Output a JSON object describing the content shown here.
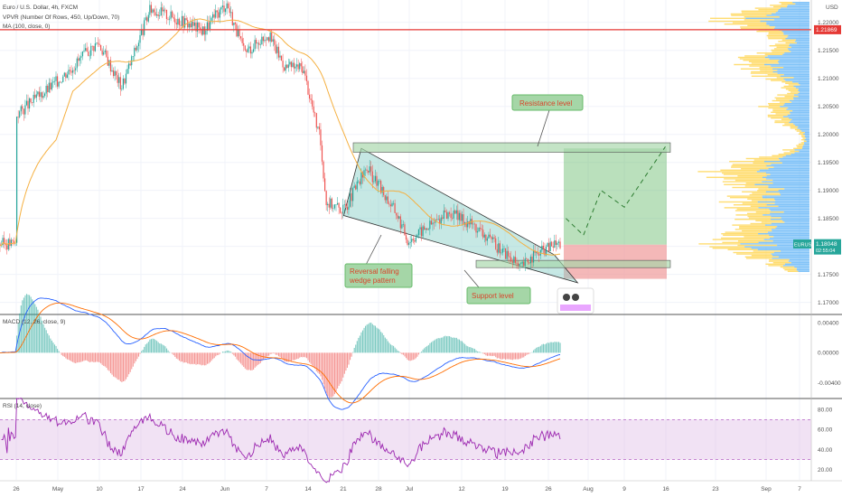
{
  "header": {
    "symbol_title": "Euro / U.S. Dollar, 4h, FXCM",
    "indicator_vpvr": "VPVR (Number Of Rows, 450, Up/Down, 70)",
    "indicator_ma": "MA (100, close, 0)"
  },
  "price_axis": {
    "currency": "USD",
    "ticks": [
      "1.22000",
      "1.21500",
      "1.21000",
      "1.20500",
      "1.20000",
      "1.19500",
      "1.19000",
      "1.18500",
      "1.18000",
      "1.17500",
      "1.17000"
    ],
    "tick_values": [
      1.22,
      1.215,
      1.21,
      1.205,
      1.2,
      1.195,
      1.19,
      1.185,
      1.18,
      1.175,
      1.17
    ],
    "red_level_label": "1.21869",
    "red_level_value": 1.21869,
    "current_symbol": "EURUSD",
    "current_price": "1.18048",
    "current_price_value": 1.18048,
    "countdown": "02:55:04"
  },
  "time_axis": {
    "labels": [
      "26",
      "May",
      "10",
      "17",
      "24",
      "Jun",
      "7",
      "14",
      "21",
      "28",
      "Jul",
      "12",
      "19",
      "26",
      "Aug",
      "9",
      "16",
      "23",
      "Sep",
      "7"
    ]
  },
  "annotations": {
    "resistance": "Resistance level",
    "wedge_line1": "Reversal falling",
    "wedge_line2": "wedge pattern",
    "support": "Support level"
  },
  "macd": {
    "title": "MACD (12, 26, close, 9)",
    "ticks": [
      "0.00400",
      "0.00000",
      "-0.00400"
    ],
    "tick_values": [
      0.004,
      0,
      -0.004
    ]
  },
  "rsi": {
    "title": "RSI (14, close)",
    "ticks": [
      "80.00",
      "60.00",
      "40.00",
      "20.00"
    ],
    "tick_values": [
      80,
      60,
      40,
      20
    ]
  },
  "colors": {
    "up": "#26a69a",
    "down": "#ef5350",
    "ma": "#f5b041",
    "red_level": "#e53935",
    "resistance_zone": "#a5d6a7",
    "wedge": "#80cbc4",
    "target": "#66bb6a",
    "stop": "#ef9a9a",
    "macd_line": "#2962ff",
    "signal_line": "#ff6d00",
    "rsi_line": "#9c27b0",
    "rsi_band": "#e1bee7"
  },
  "chart_data": [
    {
      "type": "candlestick",
      "title": "Euro / U.S. Dollar, 4h, FXCM",
      "ylim": [
        1.168,
        1.224
      ],
      "overlays": {
        "resistance_zone": [
          1.1968,
          1.1985
        ],
        "support_zone": [
          1.1762,
          1.1775
        ],
        "red_horizontal_level": 1.21869,
        "long_position": {
          "entry": 1.1803,
          "target": 1.1975,
          "stop": 1.1742
        },
        "falling_wedge_upper": [
          [
            "Jun 24",
            1.1975
          ],
          [
            "Jul 27",
            1.1785
          ]
        ],
        "falling_wedge_lower": [
          [
            "Jun 21",
            1.1855
          ],
          [
            "Jul 31",
            1.1735
          ]
        ]
      },
      "price_path_approx": [
        [
          "Apr 26",
          1.2035
        ],
        [
          "May 3",
          1.2095
        ],
        [
          "May 10",
          1.2165
        ],
        [
          "May 14",
          1.2085
        ],
        [
          "May 19",
          1.2225
        ],
        [
          "May 25",
          1.22
        ],
        [
          "May 28",
          1.2185
        ],
        [
          "Jun 1",
          1.2235
        ],
        [
          "Jun 4",
          1.2145
        ],
        [
          "Jun 8",
          1.218
        ],
        [
          "Jun 11",
          1.212
        ],
        [
          "Jun 14",
          1.212
        ],
        [
          "Jun 17",
          1.199
        ],
        [
          "Jun 18",
          1.188
        ],
        [
          "Jun 21",
          1.1865
        ],
        [
          "Jun 25",
          1.194
        ],
        [
          "Jun 30",
          1.186
        ],
        [
          "Jul 2",
          1.181
        ],
        [
          "Jul 6",
          1.184
        ],
        [
          "Jul 9",
          1.186
        ],
        [
          "Jul 13",
          1.184
        ],
        [
          "Jul 16",
          1.181
        ],
        [
          "Jul 19",
          1.1785
        ],
        [
          "Jul 21",
          1.176
        ],
        [
          "Jul 23",
          1.178
        ],
        [
          "Jul 27",
          1.1805
        ]
      ]
    },
    {
      "type": "line",
      "title": "MACD (12, 26, close, 9)",
      "ylim": [
        -0.006,
        0.005
      ]
    },
    {
      "type": "line",
      "title": "RSI (14, close)",
      "ylim": [
        10,
        90
      ],
      "band": [
        30,
        70
      ]
    }
  ]
}
